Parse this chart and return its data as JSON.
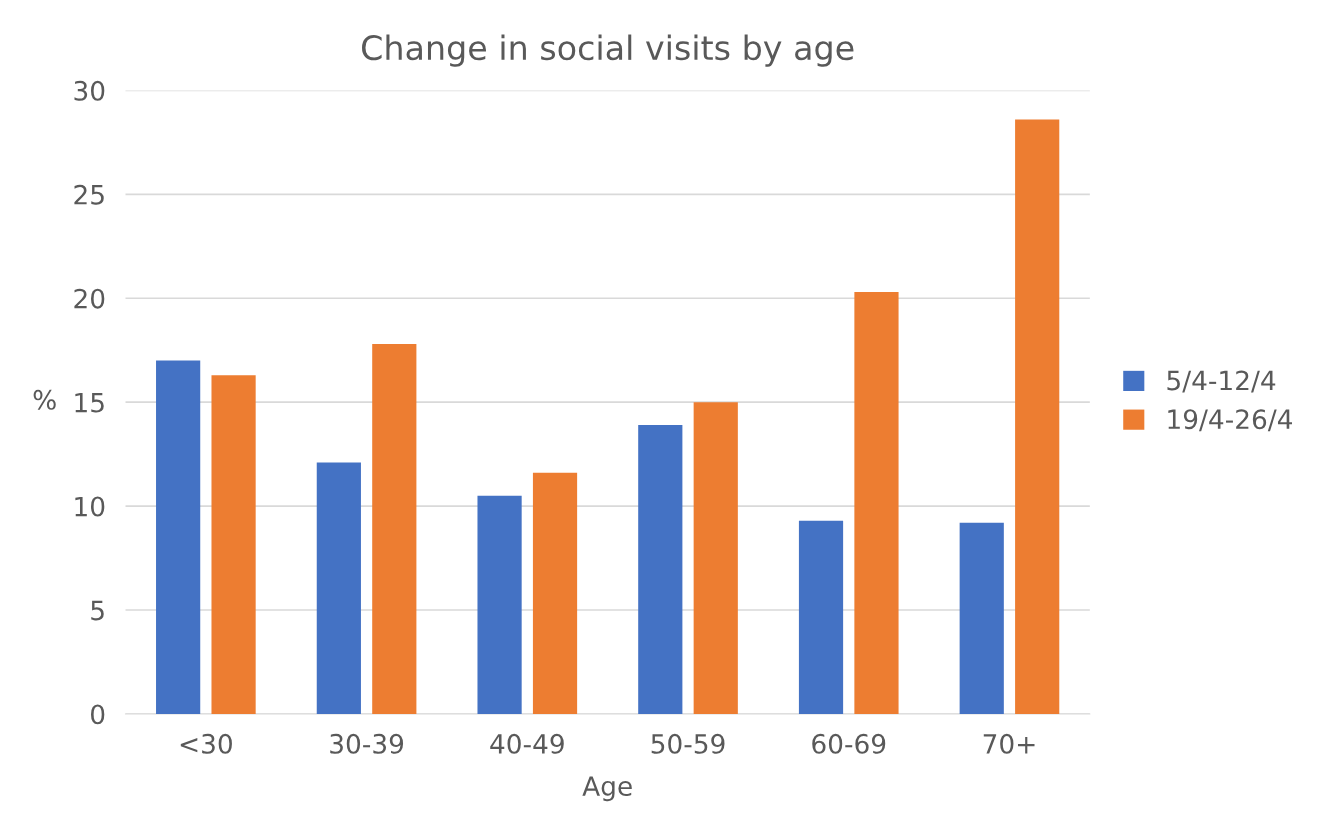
{
  "chart_data": {
    "type": "bar",
    "title": "Change in social visits by age",
    "xlabel": "Age",
    "ylabel": "%",
    "categories": [
      "<30",
      "30-39",
      "40-49",
      "50-59",
      "60-69",
      "70+"
    ],
    "series": [
      {
        "name": "5/4-12/4",
        "color": "#4472c4",
        "values": [
          17.0,
          12.1,
          10.5,
          13.9,
          9.3,
          9.2
        ]
      },
      {
        "name": "19/4-26/4",
        "color": "#ed7d31",
        "values": [
          16.3,
          17.8,
          11.6,
          15.0,
          20.3,
          28.6
        ]
      }
    ],
    "ylim": [
      0,
      30
    ],
    "yticks": [
      0,
      5,
      10,
      15,
      20,
      25,
      30
    ],
    "grid": "y",
    "legend": "right"
  }
}
